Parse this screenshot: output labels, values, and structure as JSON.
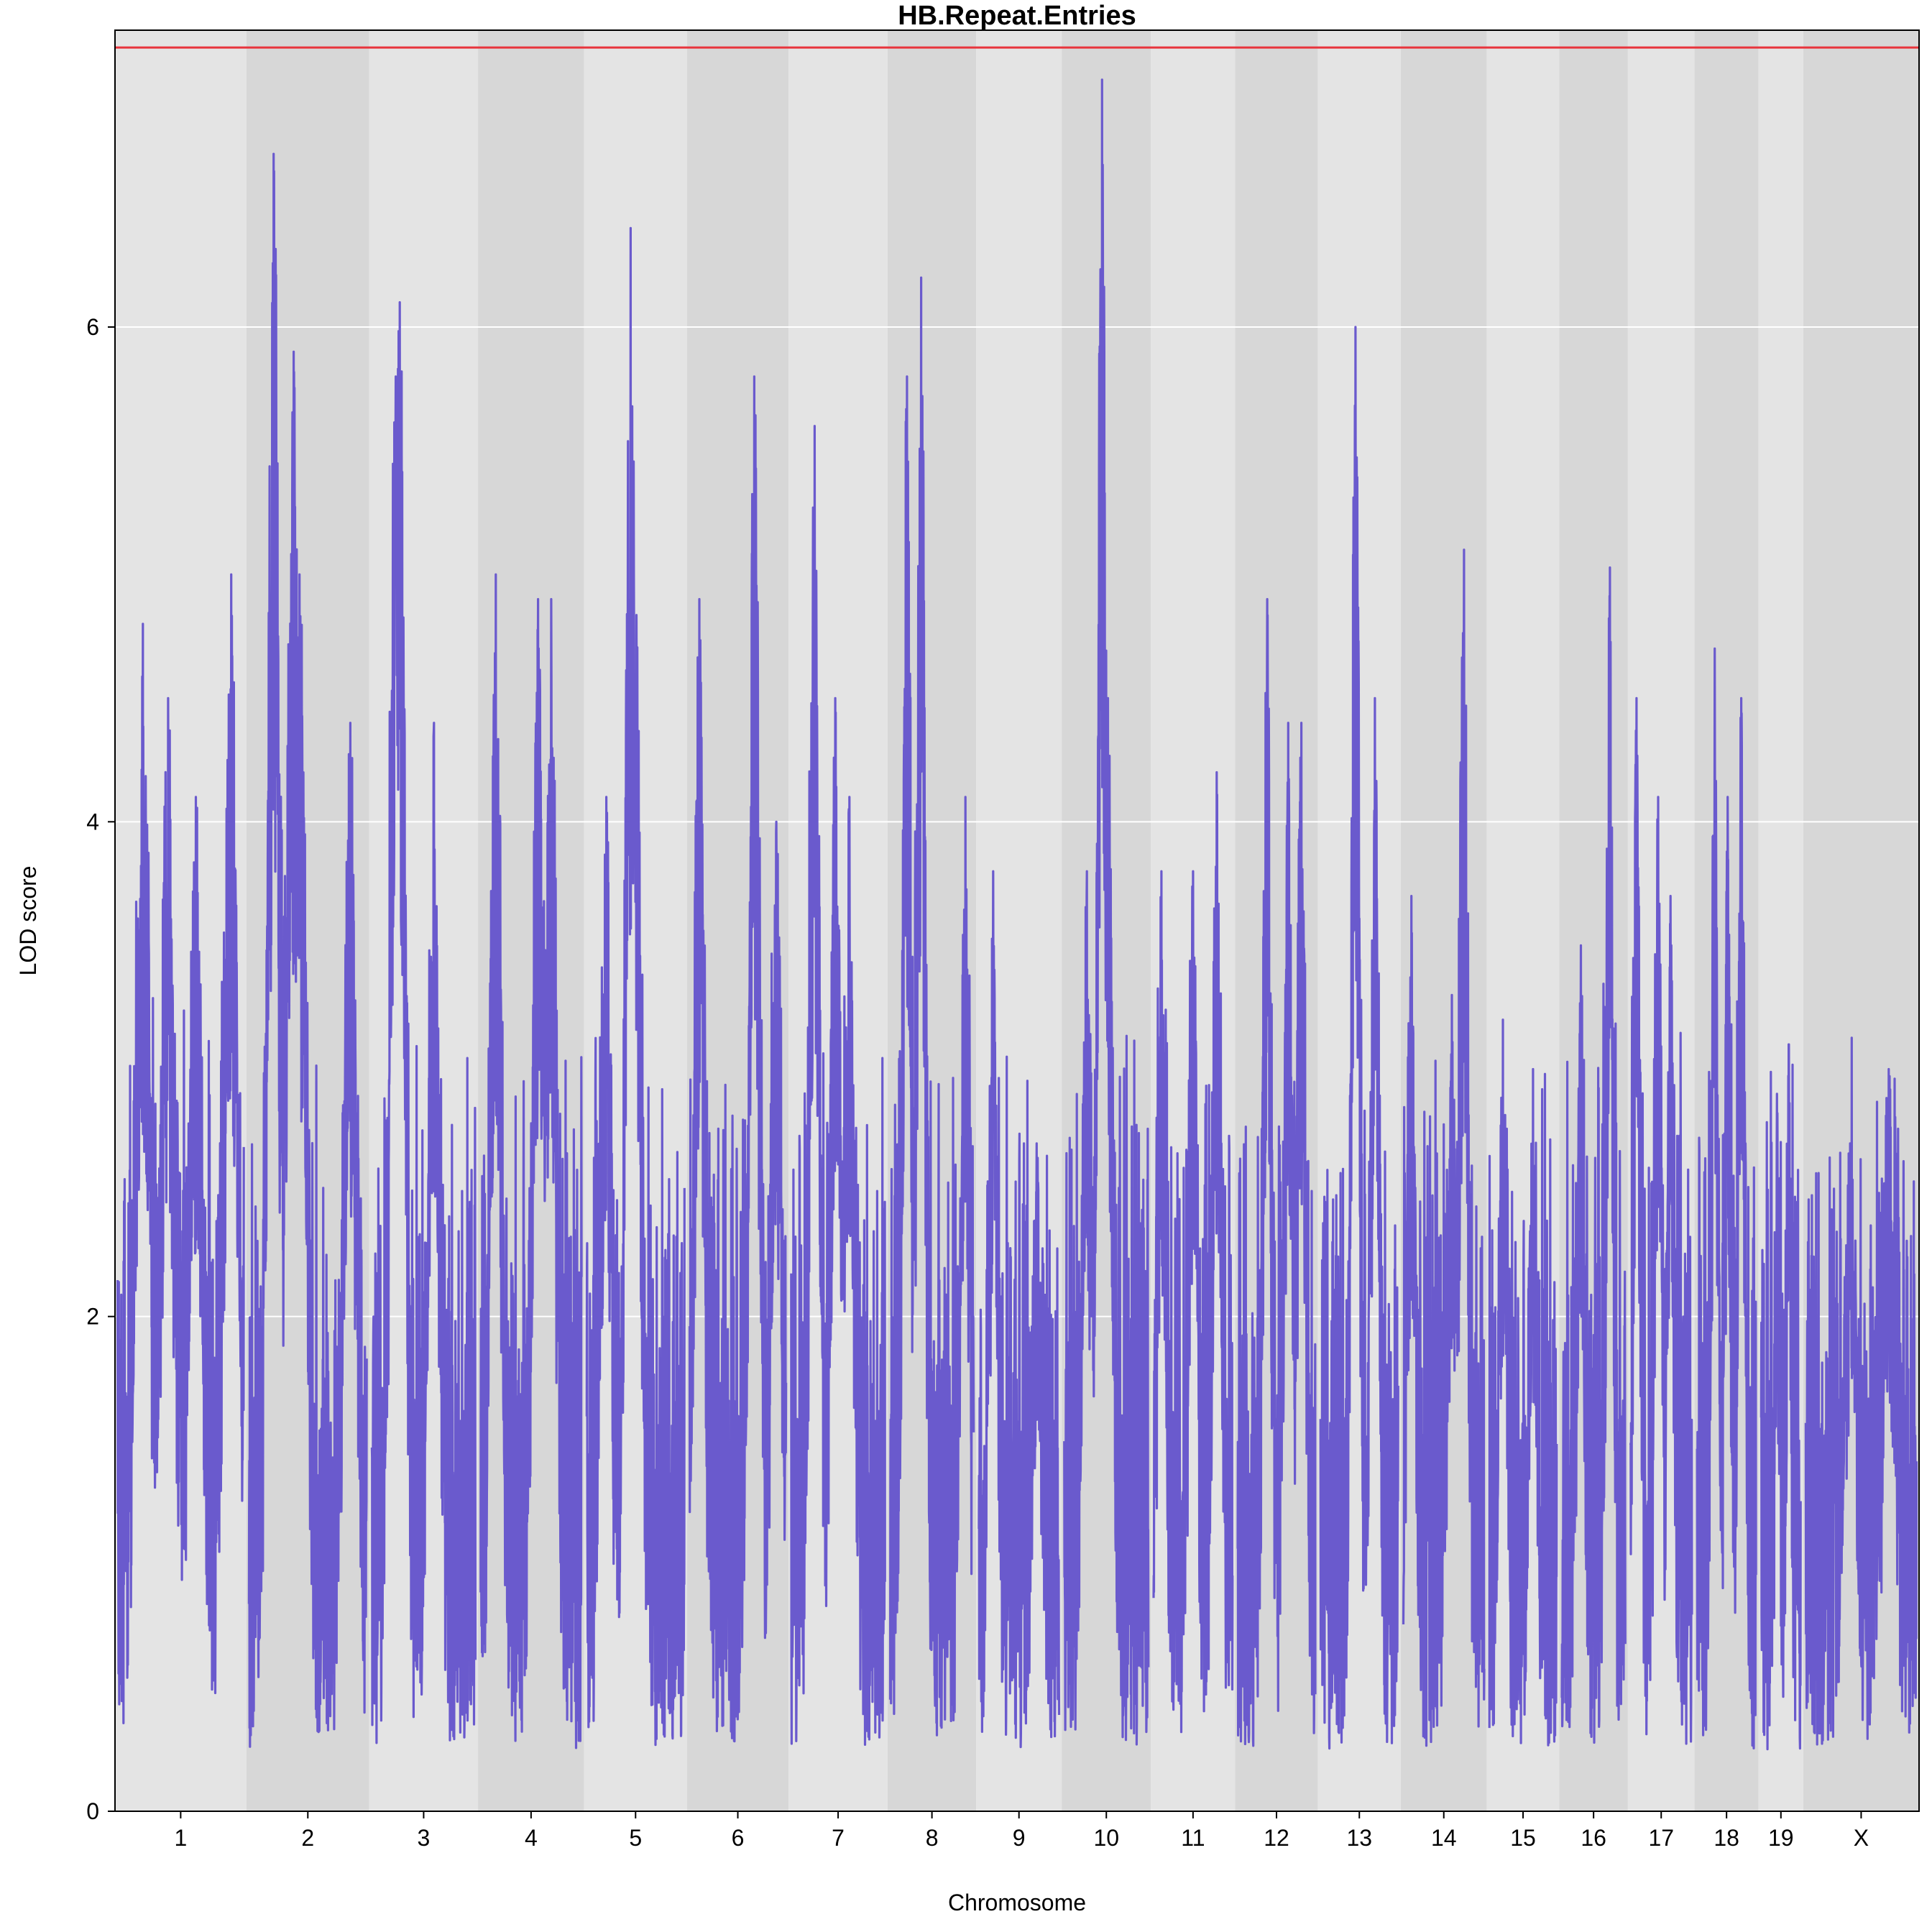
{
  "chart_data": {
    "type": "line",
    "title": "HB.Repeat.Entries",
    "xlabel": "Chromosome",
    "ylabel": "LOD score",
    "ylim": [
      0,
      7.2
    ],
    "yticks": [
      0,
      2,
      4,
      6
    ],
    "threshold": 7.13,
    "grid": true,
    "colors": {
      "line": "#6A5ACD",
      "threshold": "#E8343C",
      "band_light": "#E4E4E4",
      "band_dark": "#D7D7D7",
      "grid": "#FFFFFF"
    },
    "chromosomes": [
      {
        "name": "1",
        "length": 195,
        "peaks": [
          [
            0.2,
            1.9
          ],
          [
            0.2,
            4.8
          ],
          [
            0.4,
            4.5
          ],
          [
            0.62,
            4.1
          ],
          [
            0.9,
            5.0
          ]
        ]
      },
      {
        "name": "2",
        "length": 182,
        "peaks": [
          [
            0.21,
            6.7
          ],
          [
            0.38,
            5.9
          ],
          [
            0.43,
            5.0
          ],
          [
            0.86,
            4.4
          ]
        ]
      },
      {
        "name": "3",
        "length": 160,
        "peaks": [
          [
            0.23,
            5.8
          ],
          [
            0.27,
            6.1
          ],
          [
            0.6,
            4.4
          ]
        ]
      },
      {
        "name": "4",
        "length": 156,
        "peaks": [
          [
            0.15,
            5.0
          ],
          [
            0.57,
            4.9
          ],
          [
            0.7,
            4.9
          ]
        ]
      },
      {
        "name": "5",
        "length": 151,
        "peaks": [
          [
            0.2,
            4.1
          ],
          [
            0.45,
            6.4
          ],
          [
            0.5,
            5.0
          ]
        ]
      },
      {
        "name": "6",
        "length": 149,
        "peaks": [
          [
            0.1,
            4.9
          ],
          [
            0.67,
            5.8
          ],
          [
            0.9,
            4.0
          ]
        ]
      },
      {
        "name": "7",
        "length": 145,
        "peaks": [
          [
            0.25,
            5.6
          ],
          [
            0.47,
            4.5
          ],
          [
            0.62,
            4.1
          ]
        ]
      },
      {
        "name": "8",
        "length": 129,
        "peaks": [
          [
            0.2,
            5.8
          ],
          [
            0.37,
            6.2
          ],
          [
            0.9,
            4.1
          ]
        ]
      },
      {
        "name": "9",
        "length": 124,
        "peaks": [
          [
            0.18,
            3.8
          ],
          [
            0.72,
            2.7
          ]
        ]
      },
      {
        "name": "10",
        "length": 130,
        "peaks": [
          [
            0.27,
            3.8
          ],
          [
            0.45,
            7.0
          ],
          [
            0.52,
            4.5
          ]
        ]
      },
      {
        "name": "11",
        "length": 122,
        "peaks": [
          [
            0.1,
            3.8
          ],
          [
            0.5,
            3.8
          ],
          [
            0.8,
            4.2
          ]
        ]
      },
      {
        "name": "12",
        "length": 120,
        "peaks": [
          [
            0.38,
            4.9
          ],
          [
            0.65,
            4.4
          ],
          [
            0.82,
            4.4
          ]
        ]
      },
      {
        "name": "13",
        "length": 120,
        "peaks": [
          [
            0.45,
            6.0
          ],
          [
            0.7,
            4.5
          ]
        ]
      },
      {
        "name": "14",
        "length": 125,
        "peaks": [
          [
            0.1,
            3.7
          ],
          [
            0.6,
            3.3
          ],
          [
            0.75,
            5.1
          ]
        ]
      },
      {
        "name": "15",
        "length": 104,
        "peaks": [
          [
            0.2,
            3.2
          ],
          [
            0.65,
            3.0
          ]
        ]
      },
      {
        "name": "16",
        "length": 98,
        "peaks": [
          [
            0.3,
            3.5
          ],
          [
            0.75,
            5.1
          ]
        ]
      },
      {
        "name": "17",
        "length": 95,
        "peaks": [
          [
            0.1,
            4.5
          ],
          [
            0.45,
            4.1
          ],
          [
            0.65,
            3.7
          ]
        ]
      },
      {
        "name": "18",
        "length": 91,
        "peaks": [
          [
            0.3,
            4.7
          ],
          [
            0.52,
            4.1
          ],
          [
            0.75,
            4.5
          ]
        ]
      },
      {
        "name": "19",
        "length": 61,
        "peaks": [
          [
            0.4,
            2.9
          ],
          [
            0.7,
            3.1
          ]
        ]
      },
      {
        "name": "X",
        "length": 171,
        "peaks": [
          [
            0.4,
            2.7
          ],
          [
            0.75,
            3.0
          ]
        ]
      }
    ]
  }
}
